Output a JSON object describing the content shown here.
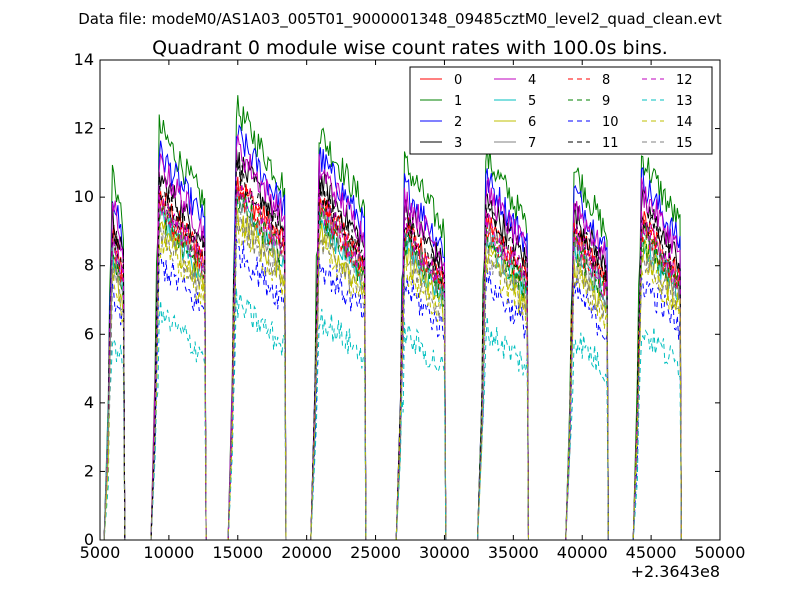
{
  "header": {
    "data_file_label": "Data file: modeM0/AS1A03_005T01_9000001348_09485cztM0_level2_quad_clean.evt"
  },
  "chart_data": {
    "type": "line",
    "title": "Quadrant 0 module wise count rates with 100.0s bins.",
    "xlabel": "",
    "ylabel": "",
    "x_offset_label": "+2.3643e8",
    "xlim": [
      5000,
      50000
    ],
    "ylim": [
      0,
      14
    ],
    "x_ticks": [
      5000,
      10000,
      15000,
      20000,
      25000,
      30000,
      35000,
      40000,
      45000,
      50000
    ],
    "x_tick_labels": [
      "5000",
      "10000",
      "15000",
      "20000",
      "25000",
      "30000",
      "35000",
      "40000",
      "45000",
      "50000"
    ],
    "y_ticks": [
      0,
      2,
      4,
      6,
      8,
      10,
      12,
      14
    ],
    "y_tick_labels": [
      "0",
      "2",
      "4",
      "6",
      "8",
      "10",
      "12",
      "14"
    ],
    "grid": false,
    "legend_position": "top-right",
    "bin_size_s": 100,
    "orbit_segments": [
      {
        "start": 5600,
        "end": 6700
      },
      {
        "start": 9000,
        "end": 12600
      },
      {
        "start": 14600,
        "end": 18400
      },
      {
        "start": 20600,
        "end": 24200
      },
      {
        "start": 26800,
        "end": 30000
      },
      {
        "start": 32700,
        "end": 36000
      },
      {
        "start": 39100,
        "end": 41800
      },
      {
        "start": 44000,
        "end": 47100
      }
    ],
    "series": [
      {
        "name": "0",
        "color": "#ff0000",
        "dash": "solid",
        "base_rate": 8.5
      },
      {
        "name": "1",
        "color": "#008000",
        "dash": "solid",
        "base_rate": 10.2
      },
      {
        "name": "2",
        "color": "#0000ff",
        "dash": "solid",
        "base_rate": 9.6
      },
      {
        "name": "3",
        "color": "#000000",
        "dash": "solid",
        "base_rate": 9.0
      },
      {
        "name": "4",
        "color": "#bf00bf",
        "dash": "solid",
        "base_rate": 9.3
      },
      {
        "name": "5",
        "color": "#00bfbf",
        "dash": "solid",
        "base_rate": 8.0
      },
      {
        "name": "6",
        "color": "#bfbf00",
        "dash": "solid",
        "base_rate": 7.7
      },
      {
        "name": "7",
        "color": "#808080",
        "dash": "solid",
        "base_rate": 8.2
      },
      {
        "name": "8",
        "color": "#ff0000",
        "dash": "dashed",
        "base_rate": 8.3
      },
      {
        "name": "9",
        "color": "#008000",
        "dash": "dashed",
        "base_rate": 8.1
      },
      {
        "name": "10",
        "color": "#0000ff",
        "dash": "dashed",
        "base_rate": 6.9
      },
      {
        "name": "11",
        "color": "#000000",
        "dash": "dashed",
        "base_rate": 8.7
      },
      {
        "name": "12",
        "color": "#bf00bf",
        "dash": "dashed",
        "base_rate": 8.4
      },
      {
        "name": "13",
        "color": "#00bfbf",
        "dash": "dashed",
        "base_rate": 5.6
      },
      {
        "name": "14",
        "color": "#bfbf00",
        "dash": "dashed",
        "base_rate": 7.4
      },
      {
        "name": "15",
        "color": "#808080",
        "dash": "dashed",
        "base_rate": 7.6
      }
    ]
  }
}
